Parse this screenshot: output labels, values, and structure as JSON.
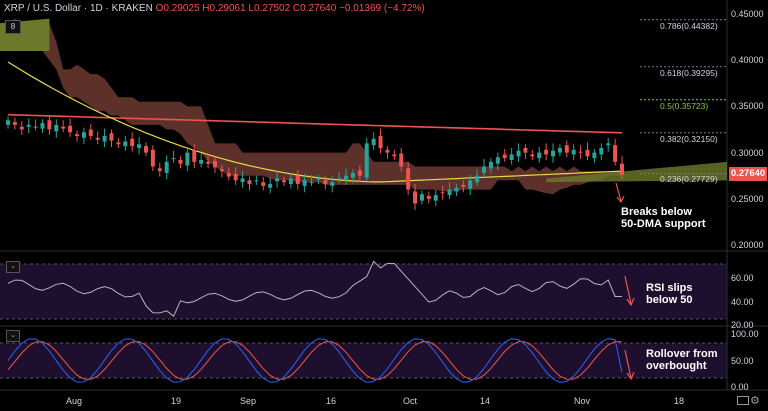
{
  "header": {
    "symbol": "XRP / U.S. Dollar",
    "interval": "1D",
    "exchange": "KRAKEN",
    "ohlc": "O0.29025 H0.29061 L0.27502 C0.27640",
    "change": "−0.01369 (−4.72%)"
  },
  "collapse_label": "8",
  "price_axis": [
    "0.45000",
    "0.40000",
    "0.35000",
    "0.30000",
    "0.25000",
    "0.20000"
  ],
  "price_tag": "0.27640",
  "fib_levels": {
    "f786": "0.786(0.44382)",
    "f618": "0.618(0.39295)",
    "f5": "0.5(0.35723)",
    "f382": "0.382(0.32150)",
    "f236": "0.236(0.27729)"
  },
  "rsi_axis": [
    "60.00",
    "40.00",
    "20.00"
  ],
  "stoch_axis": [
    "100.00",
    "50.00",
    "0.00"
  ],
  "time_axis": [
    "Aug",
    "19",
    "Sep",
    "16",
    "Oct",
    "14",
    "Nov",
    "18"
  ],
  "annotations": {
    "main_line1": "Breaks below",
    "main_line2": "50-DMA support",
    "rsi_line1": "RSI slips",
    "rsi_line2": "below 50",
    "stoch_line1": "Rollover from",
    "stoch_line2": "overbought"
  },
  "colors": {
    "up": "#26a69a",
    "down": "#ef5350",
    "cloud": "#6d3a31",
    "ma200": "#ef5350",
    "ma50": "#e6d84a",
    "rsi_bg": "#1e0f2e",
    "rsi_line": "#b2b5be",
    "stoch_k": "#2962ff",
    "stoch_d": "#ef5350"
  },
  "chart_data": {
    "type": "candlestick",
    "closes": [
      0.335,
      0.33,
      0.325,
      0.33,
      0.328,
      0.332,
      0.325,
      0.33,
      0.326,
      0.322,
      0.318,
      0.322,
      0.318,
      0.314,
      0.318,
      0.313,
      0.309,
      0.312,
      0.307,
      0.309,
      0.3,
      0.285,
      0.28,
      0.29,
      0.294,
      0.288,
      0.3,
      0.29,
      0.292,
      0.288,
      0.284,
      0.28,
      0.274,
      0.27,
      0.272,
      0.266,
      0.27,
      0.264,
      0.266,
      0.272,
      0.268,
      0.272,
      0.266,
      0.27,
      0.268,
      0.272,
      0.266,
      0.268,
      0.272,
      0.275,
      0.278,
      0.275,
      0.31,
      0.315,
      0.305,
      0.3,
      0.296,
      0.285,
      0.26,
      0.245,
      0.255,
      0.25,
      0.254,
      0.256,
      0.26,
      0.262,
      0.263,
      0.27,
      0.275,
      0.285,
      0.29,
      0.295,
      0.294,
      0.298,
      0.302,
      0.3,
      0.296,
      0.3,
      0.298,
      0.302,
      0.305,
      0.3,
      0.303,
      0.3,
      0.296,
      0.3,
      0.305,
      0.31,
      0.29,
      0.276
    ],
    "ylim": [
      0.2,
      0.45
    ]
  }
}
